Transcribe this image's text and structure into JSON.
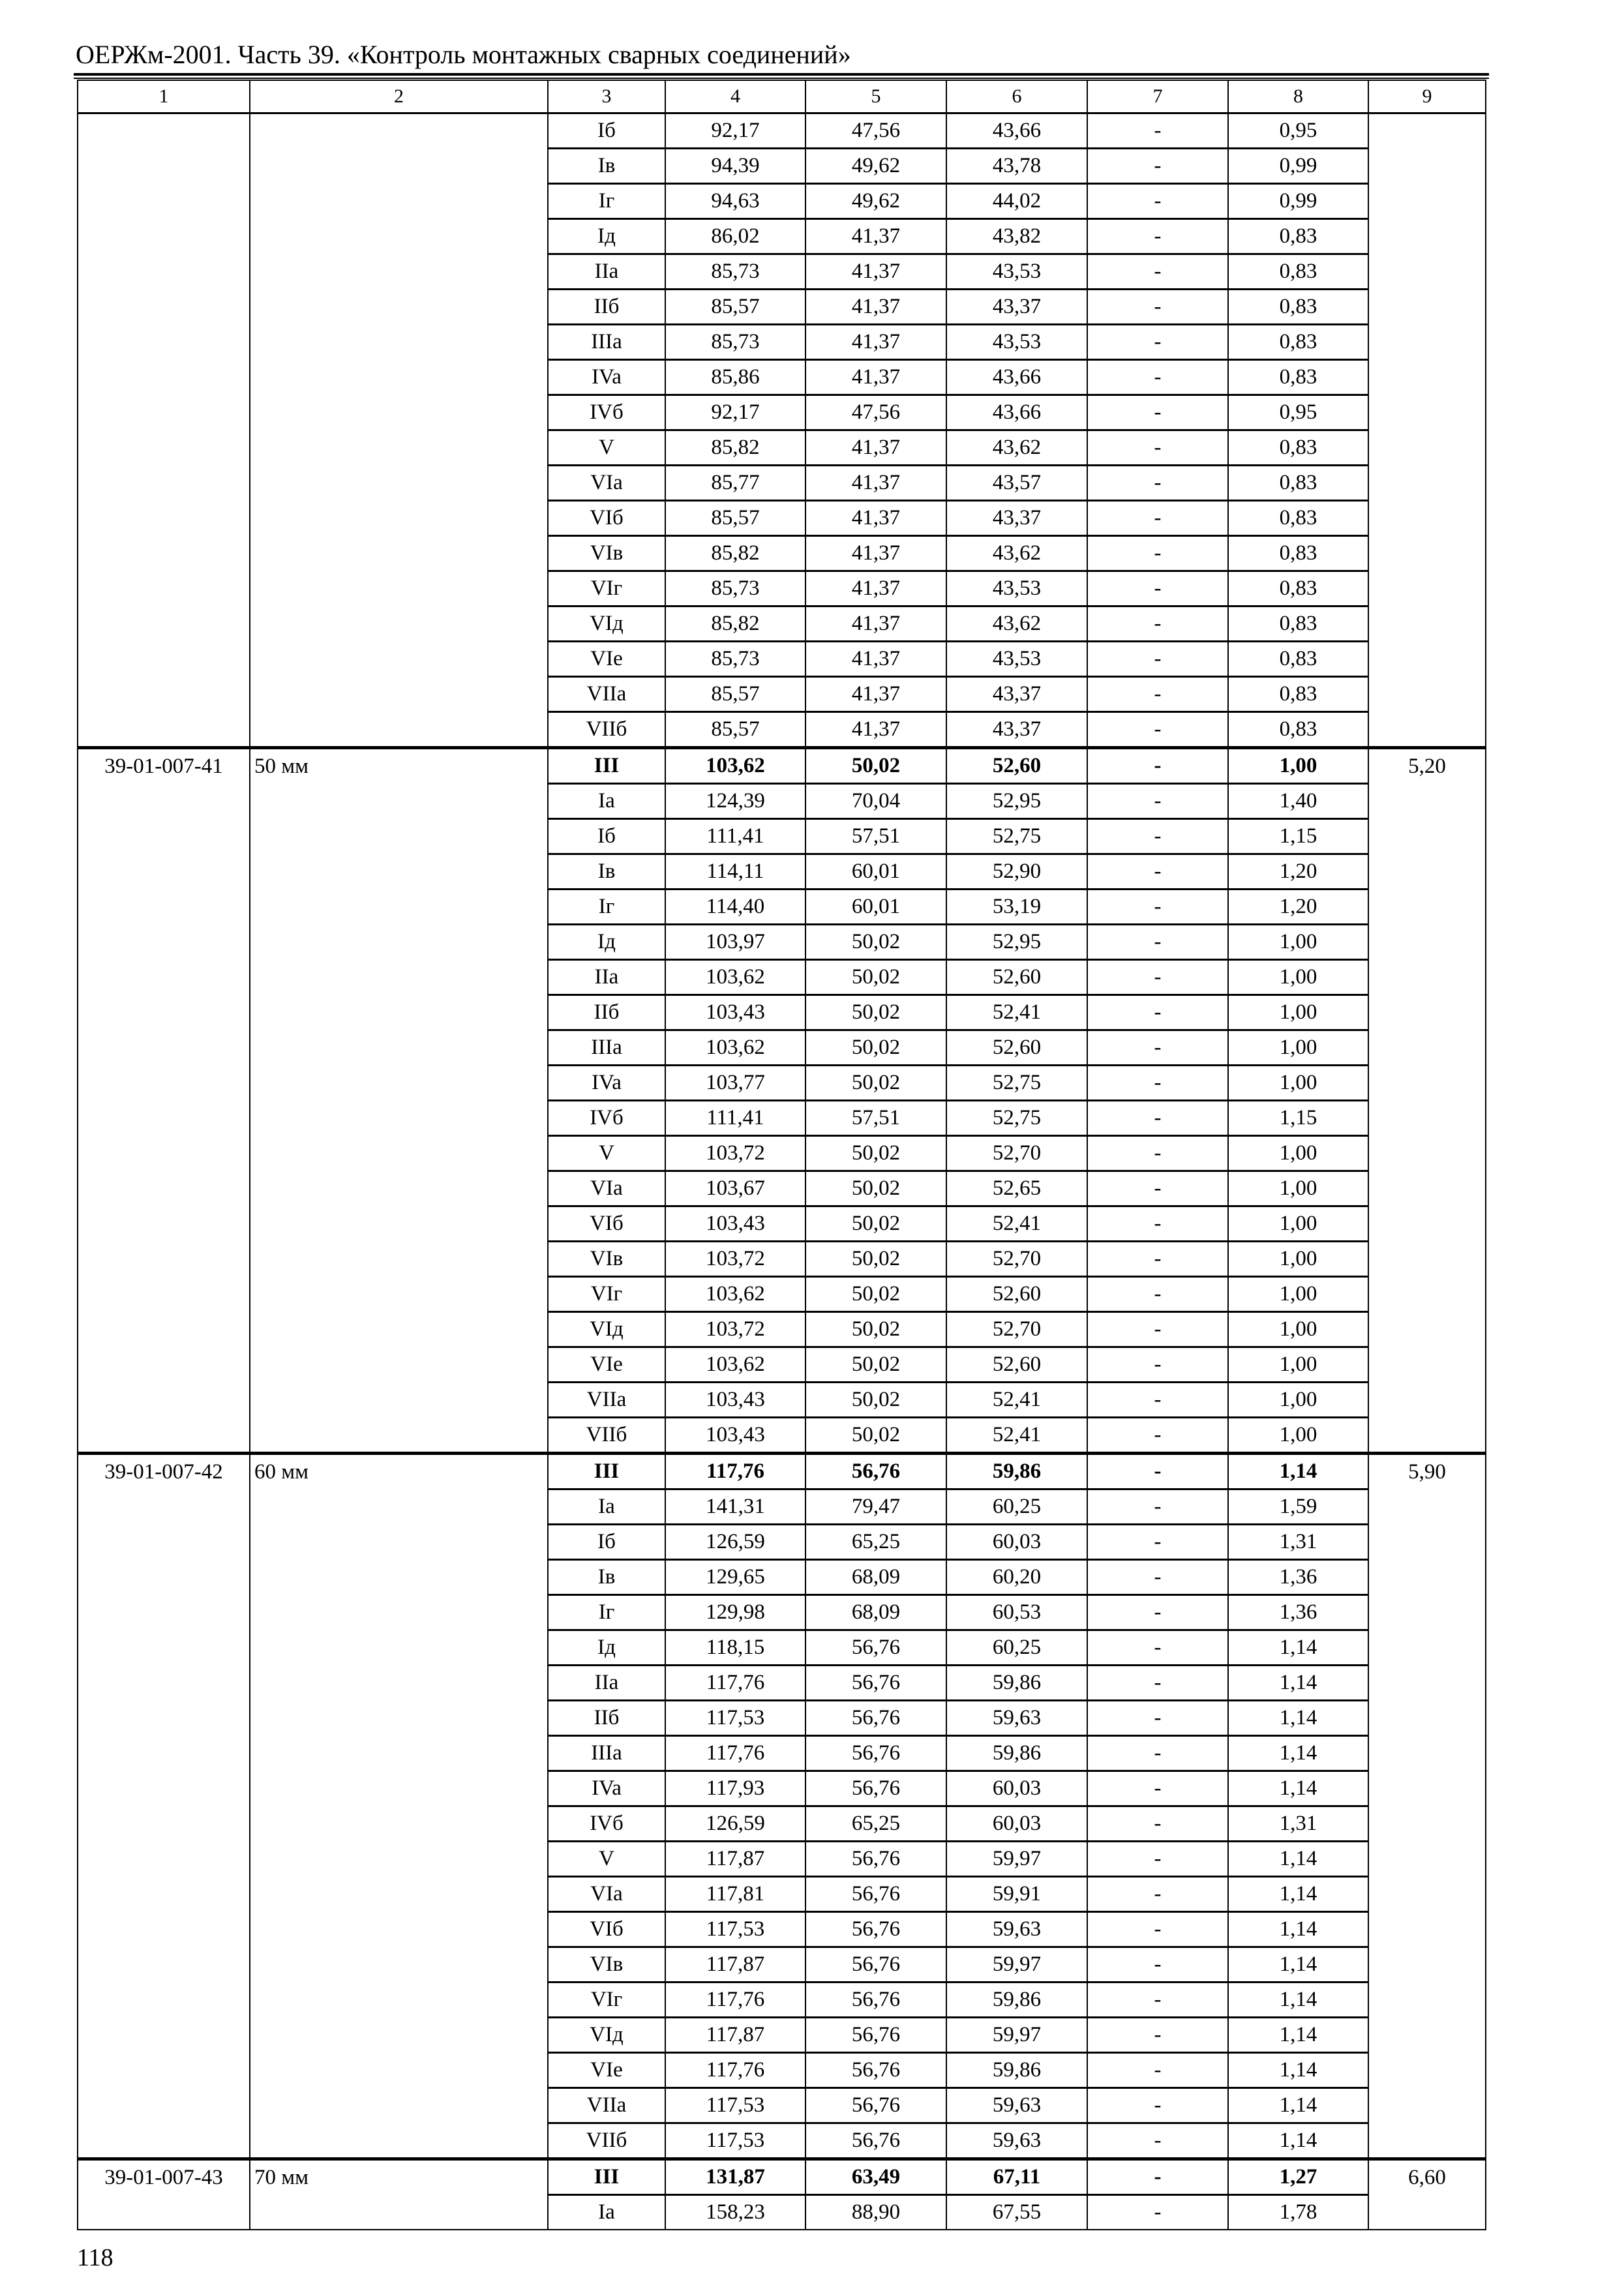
{
  "header": {
    "title": "ОЕРЖм-2001. Часть 39. «Контроль монтажных сварных соединений»"
  },
  "table": {
    "columns": [
      "1",
      "2",
      "3",
      "4",
      "5",
      "6",
      "7",
      "8",
      "9"
    ],
    "groups": [
      {
        "code": "",
        "size": "",
        "col9": "",
        "rows": [
          [
            "Iб",
            "92,17",
            "47,56",
            "43,66",
            "-",
            "0,95"
          ],
          [
            "Iв",
            "94,39",
            "49,62",
            "43,78",
            "-",
            "0,99"
          ],
          [
            "Iг",
            "94,63",
            "49,62",
            "44,02",
            "-",
            "0,99"
          ],
          [
            "Iд",
            "86,02",
            "41,37",
            "43,82",
            "-",
            "0,83"
          ],
          [
            "IIa",
            "85,73",
            "41,37",
            "43,53",
            "-",
            "0,83"
          ],
          [
            "IIб",
            "85,57",
            "41,37",
            "43,37",
            "-",
            "0,83"
          ],
          [
            "IIIa",
            "85,73",
            "41,37",
            "43,53",
            "-",
            "0,83"
          ],
          [
            "IVa",
            "85,86",
            "41,37",
            "43,66",
            "-",
            "0,83"
          ],
          [
            "IVб",
            "92,17",
            "47,56",
            "43,66",
            "-",
            "0,95"
          ],
          [
            "V",
            "85,82",
            "41,37",
            "43,62",
            "-",
            "0,83"
          ],
          [
            "VIa",
            "85,77",
            "41,37",
            "43,57",
            "-",
            "0,83"
          ],
          [
            "VIб",
            "85,57",
            "41,37",
            "43,37",
            "-",
            "0,83"
          ],
          [
            "VIв",
            "85,82",
            "41,37",
            "43,62",
            "-",
            "0,83"
          ],
          [
            "VIг",
            "85,73",
            "41,37",
            "43,53",
            "-",
            "0,83"
          ],
          [
            "VIд",
            "85,82",
            "41,37",
            "43,62",
            "-",
            "0,83"
          ],
          [
            "VIe",
            "85,73",
            "41,37",
            "43,53",
            "-",
            "0,83"
          ],
          [
            "VIIa",
            "85,57",
            "41,37",
            "43,37",
            "-",
            "0,83"
          ],
          [
            "VIIб",
            "85,57",
            "41,37",
            "43,37",
            "-",
            "0,83"
          ]
        ]
      },
      {
        "code": "39-01-007-41",
        "size": "50 мм",
        "col9": "5,20",
        "rows": [
          [
            "III",
            "103,62",
            "50,02",
            "52,60",
            "-",
            "1,00"
          ],
          [
            "Ia",
            "124,39",
            "70,04",
            "52,95",
            "-",
            "1,40"
          ],
          [
            "Iб",
            "111,41",
            "57,51",
            "52,75",
            "-",
            "1,15"
          ],
          [
            "Iв",
            "114,11",
            "60,01",
            "52,90",
            "-",
            "1,20"
          ],
          [
            "Iг",
            "114,40",
            "60,01",
            "53,19",
            "-",
            "1,20"
          ],
          [
            "Iд",
            "103,97",
            "50,02",
            "52,95",
            "-",
            "1,00"
          ],
          [
            "IIa",
            "103,62",
            "50,02",
            "52,60",
            "-",
            "1,00"
          ],
          [
            "IIб",
            "103,43",
            "50,02",
            "52,41",
            "-",
            "1,00"
          ],
          [
            "IIIa",
            "103,62",
            "50,02",
            "52,60",
            "-",
            "1,00"
          ],
          [
            "IVa",
            "103,77",
            "50,02",
            "52,75",
            "-",
            "1,00"
          ],
          [
            "IVб",
            "111,41",
            "57,51",
            "52,75",
            "-",
            "1,15"
          ],
          [
            "V",
            "103,72",
            "50,02",
            "52,70",
            "-",
            "1,00"
          ],
          [
            "VIa",
            "103,67",
            "50,02",
            "52,65",
            "-",
            "1,00"
          ],
          [
            "VIб",
            "103,43",
            "50,02",
            "52,41",
            "-",
            "1,00"
          ],
          [
            "VIв",
            "103,72",
            "50,02",
            "52,70",
            "-",
            "1,00"
          ],
          [
            "VIг",
            "103,62",
            "50,02",
            "52,60",
            "-",
            "1,00"
          ],
          [
            "VIд",
            "103,72",
            "50,02",
            "52,70",
            "-",
            "1,00"
          ],
          [
            "VIe",
            "103,62",
            "50,02",
            "52,60",
            "-",
            "1,00"
          ],
          [
            "VIIa",
            "103,43",
            "50,02",
            "52,41",
            "-",
            "1,00"
          ],
          [
            "VIIб",
            "103,43",
            "50,02",
            "52,41",
            "-",
            "1,00"
          ]
        ]
      },
      {
        "code": "39-01-007-42",
        "size": "60 мм",
        "col9": "5,90",
        "rows": [
          [
            "III",
            "117,76",
            "56,76",
            "59,86",
            "-",
            "1,14"
          ],
          [
            "Ia",
            "141,31",
            "79,47",
            "60,25",
            "-",
            "1,59"
          ],
          [
            "Iб",
            "126,59",
            "65,25",
            "60,03",
            "-",
            "1,31"
          ],
          [
            "Iв",
            "129,65",
            "68,09",
            "60,20",
            "-",
            "1,36"
          ],
          [
            "Iг",
            "129,98",
            "68,09",
            "60,53",
            "-",
            "1,36"
          ],
          [
            "Iд",
            "118,15",
            "56,76",
            "60,25",
            "-",
            "1,14"
          ],
          [
            "IIa",
            "117,76",
            "56,76",
            "59,86",
            "-",
            "1,14"
          ],
          [
            "IIб",
            "117,53",
            "56,76",
            "59,63",
            "-",
            "1,14"
          ],
          [
            "IIIa",
            "117,76",
            "56,76",
            "59,86",
            "-",
            "1,14"
          ],
          [
            "IVa",
            "117,93",
            "56,76",
            "60,03",
            "-",
            "1,14"
          ],
          [
            "IVб",
            "126,59",
            "65,25",
            "60,03",
            "-",
            "1,31"
          ],
          [
            "V",
            "117,87",
            "56,76",
            "59,97",
            "-",
            "1,14"
          ],
          [
            "VIa",
            "117,81",
            "56,76",
            "59,91",
            "-",
            "1,14"
          ],
          [
            "VIб",
            "117,53",
            "56,76",
            "59,63",
            "-",
            "1,14"
          ],
          [
            "VIв",
            "117,87",
            "56,76",
            "59,97",
            "-",
            "1,14"
          ],
          [
            "VIг",
            "117,76",
            "56,76",
            "59,86",
            "-",
            "1,14"
          ],
          [
            "VIд",
            "117,87",
            "56,76",
            "59,97",
            "-",
            "1,14"
          ],
          [
            "VIe",
            "117,76",
            "56,76",
            "59,86",
            "-",
            "1,14"
          ],
          [
            "VIIa",
            "117,53",
            "56,76",
            "59,63",
            "-",
            "1,14"
          ],
          [
            "VIIб",
            "117,53",
            "56,76",
            "59,63",
            "-",
            "1,14"
          ]
        ]
      },
      {
        "code": "39-01-007-43",
        "size": "70 мм",
        "col9": "6,60",
        "rows": [
          [
            "III",
            "131,87",
            "63,49",
            "67,11",
            "-",
            "1,27"
          ],
          [
            "Ia",
            "158,23",
            "88,90",
            "67,55",
            "-",
            "1,78"
          ]
        ]
      }
    ]
  },
  "footer": {
    "page_number": "118"
  }
}
